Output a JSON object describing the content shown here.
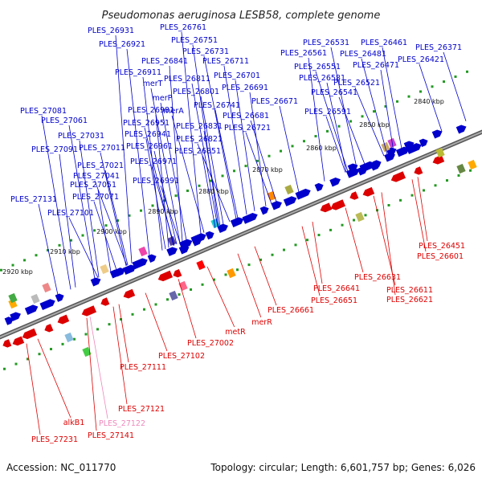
{
  "header": {
    "title": "Pseudomonas aeruginosa LESB58, complete genome"
  },
  "footer": {
    "accession": "Accession: NC_011770",
    "summary": "Topology: circular; Length: 6,601,757 bp; Genes: 6,026"
  },
  "colors": {
    "forward": "#0000cc",
    "reverse": "#dd0000",
    "reverse_light": "#ee88bb",
    "backbone": "#777777",
    "tick": "#229922"
  },
  "ticks": [
    "2840 kbp",
    "2850 kbp",
    "2860 kbp",
    "2870 kbp",
    "2880 kbp",
    "2890 kbp",
    "2900 kbp",
    "2910 kbp",
    "2920 kbp"
  ],
  "forward_labels": [
    "PLES_26761",
    "PLES_26931",
    "PLES_26751",
    "PLES_26921",
    "PLES_26731",
    "PLES_26841",
    "PLES_26711",
    "PLES_26911",
    "merT",
    "PLES_26811",
    "PLES_26701",
    "PLES_26691",
    "merP",
    "PLES_26801",
    "merA",
    "PLES_26981",
    "PLES_26741",
    "PLES_26671",
    "PLES_26951",
    "PLES_26681",
    "PLES_26941",
    "PLES_26831",
    "PLES_26721",
    "PLES_26961",
    "PLES_26821",
    "PLES_26851",
    "PLES_26971",
    "PLES_26991",
    "PLES_27081",
    "PLES_27061",
    "PLES_27031",
    "PLES_27091",
    "PLES_27011",
    "PLES_27021",
    "PLES_27041",
    "PLES_27051",
    "PLES_27071",
    "PLES_27131",
    "PLES_27101",
    "PLES_26531",
    "PLES_26461",
    "PLES_26561",
    "PLES_26481",
    "PLES_26371",
    "PLES_26551",
    "PLES_26471",
    "PLES_26421",
    "PLES_26581",
    "PLES_26521",
    "PLES_26541",
    "PLES_26591"
  ],
  "reverse_labels": [
    "PLES_26451",
    "PLES_26601",
    "PLES_26631",
    "PLES_26611",
    "PLES_26641",
    "PLES_26621",
    "PLES_26651",
    "PLES_26661",
    "merR",
    "metR",
    "PLES_27002",
    "PLES_27102",
    "PLES_27111",
    "PLES_27121",
    "PLES_27122",
    "alkB1",
    "PLES_27141",
    "PLES_27231"
  ]
}
